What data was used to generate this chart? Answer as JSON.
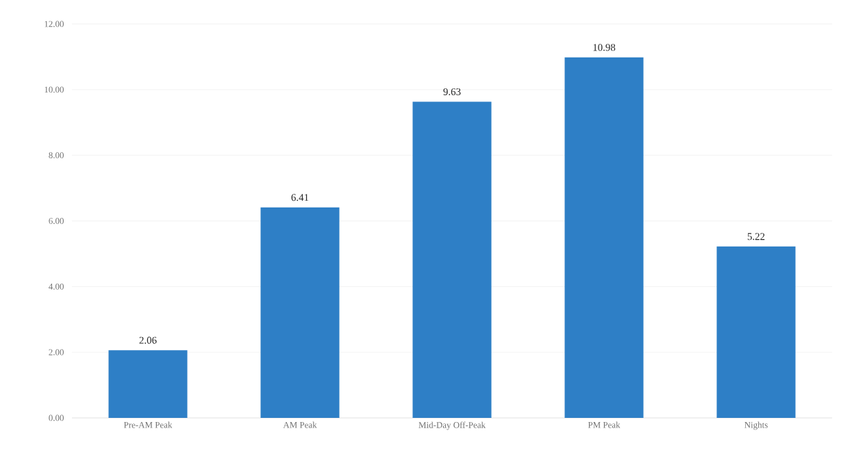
{
  "chart_data": {
    "type": "bar",
    "categories": [
      "Pre-AM Peak",
      "AM Peak",
      "Mid-Day Off-Peak",
      "PM Peak",
      "Nights"
    ],
    "values": [
      2.06,
      6.41,
      9.63,
      10.98,
      5.22
    ],
    "color": "#2e7fc6",
    "ylim": [
      0,
      12
    ],
    "yticks": [
      {
        "value": 0,
        "label": "0.00"
      },
      {
        "value": 2,
        "label": "2.00"
      },
      {
        "value": 4,
        "label": "4.00"
      },
      {
        "value": 6,
        "label": "6.00"
      },
      {
        "value": 8,
        "label": "8.00"
      },
      {
        "value": 10,
        "label": "10.00"
      },
      {
        "value": 12,
        "label": "12.00"
      }
    ],
    "grid": "y",
    "data_labels": true
  }
}
